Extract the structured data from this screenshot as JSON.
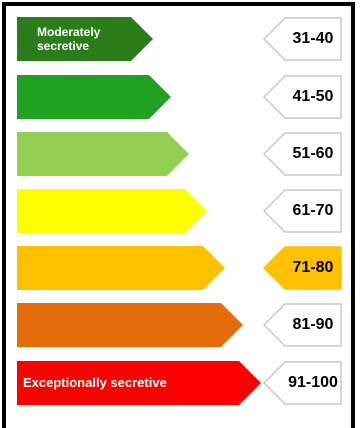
{
  "rows": [
    {
      "label_line1": "Moderately",
      "label_line2": "secretive",
      "range": "31-40",
      "color": "#2a7d1a",
      "bar_width": 136,
      "highlight": false
    },
    {
      "label_line1": "",
      "label_line2": "",
      "range": "41-50",
      "color": "#22a022",
      "bar_width": 154,
      "highlight": false
    },
    {
      "label_line1": "",
      "label_line2": "",
      "range": "51-60",
      "color": "#92cf53",
      "bar_width": 172,
      "highlight": false
    },
    {
      "label_line1": "",
      "label_line2": "",
      "range": "61-70",
      "color": "#ffff00",
      "bar_width": 190,
      "highlight": false
    },
    {
      "label_line1": "",
      "label_line2": "",
      "range": "71-80",
      "color": "#ffc000",
      "bar_width": 208,
      "highlight": true
    },
    {
      "label_line1": "",
      "label_line2": "",
      "range": "81-90",
      "color": "#e46c0a",
      "bar_width": 226,
      "highlight": false
    },
    {
      "label_line1": "Exceptionally secretive",
      "label_line2": "",
      "range": "91-100",
      "color": "#ff0000",
      "bar_width": 244,
      "highlight": false
    }
  ],
  "highlight_color": "#ffc000"
}
